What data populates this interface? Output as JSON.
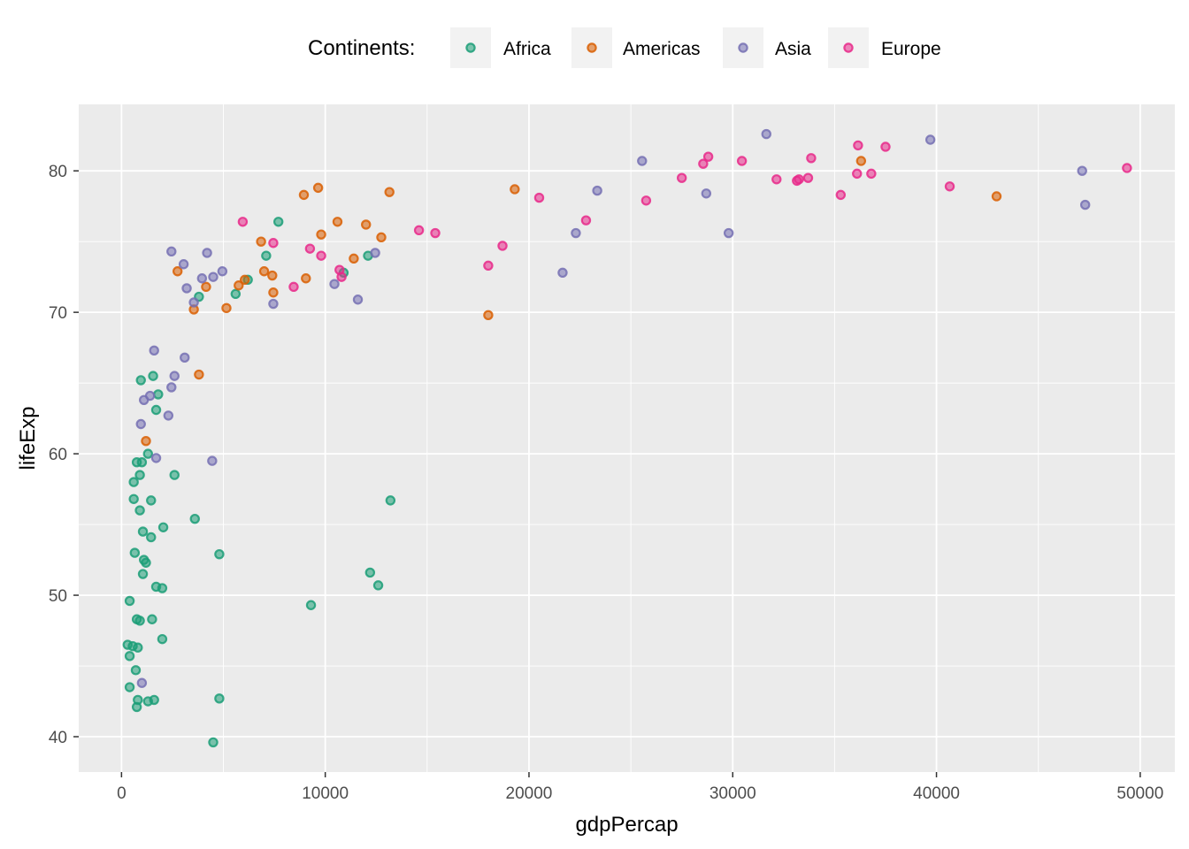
{
  "chart_data": {
    "type": "scatter",
    "xlabel": "gdpPercap",
    "ylabel": "lifeExp",
    "xlim": [
      -2100,
      51700
    ],
    "ylim": [
      37.5,
      84.7
    ],
    "xticks": [
      0,
      10000,
      20000,
      30000,
      40000,
      50000
    ],
    "xtick_labels": [
      "0",
      "10000",
      "20000",
      "30000",
      "40000",
      "50000"
    ],
    "xminor": [
      5000,
      15000,
      25000,
      35000,
      45000
    ],
    "yticks": [
      40,
      50,
      60,
      70,
      80
    ],
    "ytick_labels": [
      "40",
      "50",
      "60",
      "70",
      "80"
    ],
    "yminor": [
      45,
      55,
      65,
      75
    ],
    "grid": true,
    "legend": {
      "title": "Continents:",
      "position": "top"
    },
    "colors": {
      "panel": "#ebebeb",
      "grid": "#ffffff",
      "Africa": "#1b9e77",
      "Americas": "#d95f02",
      "Asia": "#7570b3",
      "Europe": "#e7298a"
    },
    "series": [
      {
        "name": "Africa",
        "color": "#1b9e77",
        "points": [
          [
            300,
            46.5
          ],
          [
            400,
            45.7
          ],
          [
            400,
            43.5
          ],
          [
            400,
            49.6
          ],
          [
            550,
            46.4
          ],
          [
            600,
            58.0
          ],
          [
            600,
            56.8
          ],
          [
            650,
            53.0
          ],
          [
            700,
            44.7
          ],
          [
            750,
            42.1
          ],
          [
            750,
            48.3
          ],
          [
            750,
            59.4
          ],
          [
            800,
            42.6
          ],
          [
            800,
            46.3
          ],
          [
            900,
            48.2
          ],
          [
            900,
            58.5
          ],
          [
            900,
            56.0
          ],
          [
            950,
            65.2
          ],
          [
            1000,
            59.4
          ],
          [
            1050,
            54.5
          ],
          [
            1050,
            51.5
          ],
          [
            1100,
            52.5
          ],
          [
            1200,
            52.3
          ],
          [
            1300,
            42.5
          ],
          [
            1300,
            60.0
          ],
          [
            1450,
            56.7
          ],
          [
            1450,
            54.1
          ],
          [
            1500,
            48.3
          ],
          [
            1600,
            42.6
          ],
          [
            1550,
            65.5
          ],
          [
            1700,
            63.1
          ],
          [
            1700,
            50.6
          ],
          [
            1800,
            64.2
          ],
          [
            2000,
            50.5
          ],
          [
            2000,
            46.9
          ],
          [
            2050,
            54.8
          ],
          [
            2600,
            58.5
          ],
          [
            3800,
            71.1
          ],
          [
            3600,
            55.4
          ],
          [
            4500,
            39.6
          ],
          [
            4800,
            52.9
          ],
          [
            4800,
            42.7
          ],
          [
            5600,
            71.3
          ],
          [
            6200,
            72.3
          ],
          [
            7100,
            74.0
          ],
          [
            7700,
            76.4
          ],
          [
            9300,
            49.3
          ],
          [
            10900,
            72.8
          ],
          [
            12100,
            74.0
          ],
          [
            12200,
            51.6
          ],
          [
            12600,
            50.7
          ],
          [
            13200,
            56.7
          ]
        ]
      },
      {
        "name": "Americas",
        "color": "#d95f02",
        "points": [
          [
            1200,
            60.9
          ],
          [
            2750,
            72.9
          ],
          [
            3550,
            70.2
          ],
          [
            3800,
            65.6
          ],
          [
            4150,
            71.8
          ],
          [
            5150,
            70.3
          ],
          [
            5750,
            71.9
          ],
          [
            6050,
            72.3
          ],
          [
            6850,
            75.0
          ],
          [
            7000,
            72.9
          ],
          [
            7400,
            72.6
          ],
          [
            7450,
            71.4
          ],
          [
            8950,
            78.3
          ],
          [
            9050,
            72.4
          ],
          [
            9650,
            78.8
          ],
          [
            9800,
            75.5
          ],
          [
            10600,
            76.4
          ],
          [
            11400,
            73.8
          ],
          [
            12000,
            76.2
          ],
          [
            12750,
            75.3
          ],
          [
            13150,
            78.5
          ],
          [
            18000,
            69.8
          ],
          [
            19300,
            78.7
          ],
          [
            36300,
            80.7
          ],
          [
            42950,
            78.2
          ]
        ]
      },
      {
        "name": "Asia",
        "color": "#7570b3",
        "points": [
          [
            950,
            62.1
          ],
          [
            1000,
            43.8
          ],
          [
            1100,
            63.8
          ],
          [
            1400,
            64.1
          ],
          [
            1600,
            67.3
          ],
          [
            1700,
            59.7
          ],
          [
            2300,
            62.7
          ],
          [
            2450,
            64.7
          ],
          [
            2450,
            74.3
          ],
          [
            2600,
            65.5
          ],
          [
            3050,
            73.4
          ],
          [
            3100,
            66.8
          ],
          [
            3200,
            71.7
          ],
          [
            3550,
            70.7
          ],
          [
            3950,
            72.4
          ],
          [
            4200,
            74.2
          ],
          [
            4450,
            59.5
          ],
          [
            4500,
            72.5
          ],
          [
            4950,
            72.9
          ],
          [
            7450,
            70.6
          ],
          [
            10450,
            72.0
          ],
          [
            11600,
            70.9
          ],
          [
            12450,
            74.2
          ],
          [
            21650,
            72.8
          ],
          [
            22300,
            75.6
          ],
          [
            23350,
            78.6
          ],
          [
            25550,
            80.7
          ],
          [
            28700,
            78.4
          ],
          [
            29800,
            75.6
          ],
          [
            31650,
            82.6
          ],
          [
            39700,
            82.2
          ],
          [
            47150,
            80.0
          ],
          [
            47300,
            77.6
          ]
        ]
      },
      {
        "name": "Europe",
        "color": "#e7298a",
        "points": [
          [
            5950,
            76.4
          ],
          [
            7450,
            74.9
          ],
          [
            8450,
            71.8
          ],
          [
            9250,
            74.5
          ],
          [
            9800,
            74.0
          ],
          [
            10700,
            73.0
          ],
          [
            10800,
            72.5
          ],
          [
            14600,
            75.8
          ],
          [
            15400,
            75.6
          ],
          [
            18000,
            73.3
          ],
          [
            18700,
            74.7
          ],
          [
            20500,
            78.1
          ],
          [
            22800,
            76.5
          ],
          [
            25750,
            77.9
          ],
          [
            27500,
            79.5
          ],
          [
            28550,
            80.5
          ],
          [
            28800,
            81.0
          ],
          [
            30450,
            80.7
          ],
          [
            32150,
            79.4
          ],
          [
            33150,
            79.3
          ],
          [
            33250,
            79.4
          ],
          [
            33700,
            79.5
          ],
          [
            33850,
            80.9
          ],
          [
            35300,
            78.3
          ],
          [
            36100,
            79.8
          ],
          [
            36150,
            81.8
          ],
          [
            36800,
            79.8
          ],
          [
            37500,
            81.7
          ],
          [
            40650,
            78.9
          ],
          [
            49350,
            80.2
          ]
        ]
      }
    ]
  }
}
